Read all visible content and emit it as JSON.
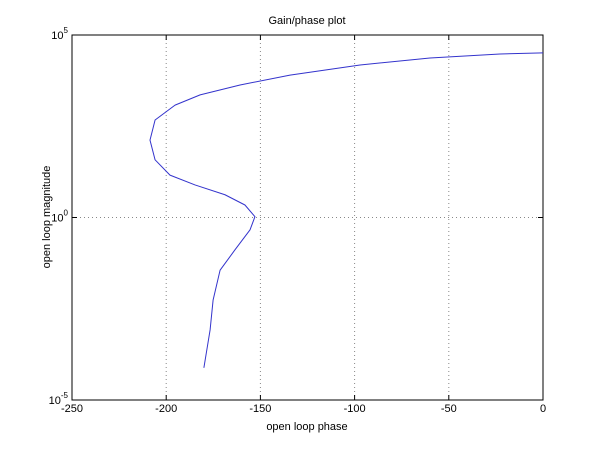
{
  "chart_data": {
    "type": "line",
    "title": "Gain/phase plot",
    "x_label": "open loop phase",
    "y_label": "open loop magnitude",
    "xlim": [
      -250,
      0
    ],
    "xticks": [
      -250,
      -200,
      -150,
      -100,
      -50,
      0
    ],
    "ylim": [
      1e-05,
      100000
    ],
    "y_log": true,
    "yticks": [
      {
        "value": 1e-05,
        "label": "10",
        "exponent": "-5"
      },
      {
        "value": 1,
        "label": "10",
        "exponent": "0"
      },
      {
        "value": 100000,
        "label": "10",
        "exponent": "5"
      }
    ],
    "grid": true,
    "x": [
      -180,
      -176.7,
      -175.1,
      -171.4,
      -163.5,
      -155.5,
      -152.9,
      -158.2,
      -168.8,
      -184.7,
      -198,
      -205.9,
      -208.6,
      -205.9,
      -195.3,
      -182,
      -160.8,
      -134.3,
      -97.1,
      -60,
      -22.8,
      0
    ],
    "series": [
      {
        "color": "#3333cc",
        "values": [
          7.6e-05,
          0.00083,
          0.0055,
          0.036,
          0.13,
          0.46,
          1.05,
          2.2,
          4.2,
          7.8,
          14.5,
          38,
          132,
          468,
          1200,
          2290,
          4270,
          7940,
          15100,
          23400,
          30200,
          32400
        ]
      }
    ]
  }
}
